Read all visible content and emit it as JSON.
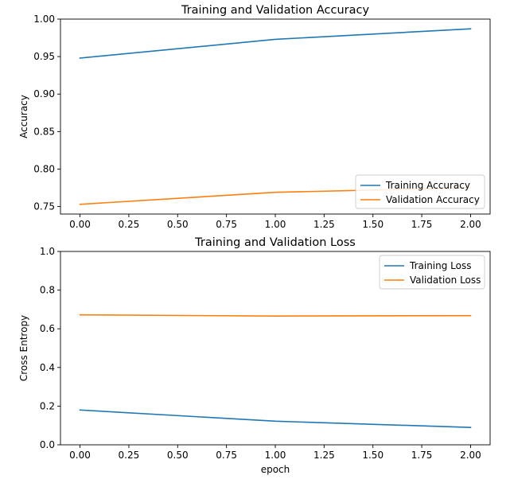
{
  "chart_data": [
    {
      "type": "line",
      "title": "Training and Validation Accuracy",
      "xlabel": "",
      "ylabel": "Accuracy",
      "xlim": [
        -0.1,
        2.1
      ],
      "ylim": [
        0.74,
        1.0
      ],
      "xticks": [
        "0.00",
        "0.25",
        "0.50",
        "0.75",
        "1.00",
        "1.25",
        "1.50",
        "1.75",
        "2.00"
      ],
      "yticks": [
        "0.75",
        "0.80",
        "0.85",
        "0.90",
        "0.95",
        "1.00"
      ],
      "grid": false,
      "legend_position": "lower-right",
      "x": [
        0,
        1,
        2
      ],
      "series": [
        {
          "name": "Training Accuracy",
          "color": "#1f77b4",
          "values": [
            0.948,
            0.973,
            0.987
          ]
        },
        {
          "name": "Validation Accuracy",
          "color": "#ff7f0e",
          "values": [
            0.753,
            0.769,
            0.775
          ]
        }
      ]
    },
    {
      "type": "line",
      "title": "Training and Validation Loss",
      "xlabel": "epoch",
      "ylabel": "Cross Entropy",
      "xlim": [
        -0.1,
        2.1
      ],
      "ylim": [
        0.0,
        1.0
      ],
      "xticks": [
        "0.00",
        "0.25",
        "0.50",
        "0.75",
        "1.00",
        "1.25",
        "1.50",
        "1.75",
        "2.00"
      ],
      "yticks": [
        "0.0",
        "0.2",
        "0.4",
        "0.6",
        "0.8",
        "1.0"
      ],
      "grid": false,
      "legend_position": "upper-right",
      "x": [
        0,
        1,
        2
      ],
      "series": [
        {
          "name": "Training Loss",
          "color": "#1f77b4",
          "values": [
            0.18,
            0.122,
            0.09
          ]
        },
        {
          "name": "Validation Loss",
          "color": "#ff7f0e",
          "values": [
            0.672,
            0.666,
            0.668
          ]
        }
      ]
    }
  ]
}
